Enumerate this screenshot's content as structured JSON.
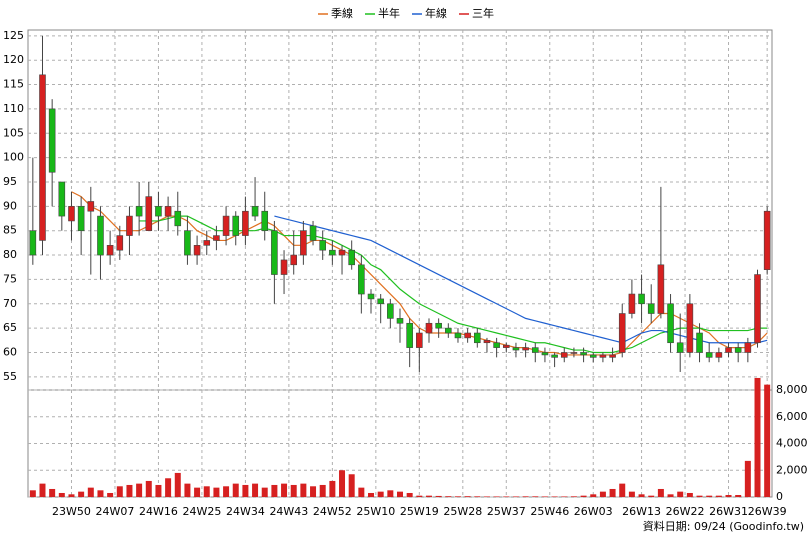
{
  "chart_data": {
    "type": "candlestick",
    "legend": [
      "季線",
      "半年",
      "年線",
      "三年"
    ],
    "footer": "資料日期: 09/24 (Goodinfo.tw)",
    "up_color": "#d62020",
    "down_color": "#18b818",
    "volume_color": "#d62020",
    "xlim": [
      0,
      77
    ],
    "xticks": [
      {
        "value": 4.5,
        "label": "23W50"
      },
      {
        "value": 9,
        "label": "24W07"
      },
      {
        "value": 13.5,
        "label": "24W16"
      },
      {
        "value": 18,
        "label": "24W25"
      },
      {
        "value": 22.5,
        "label": "24W34"
      },
      {
        "value": 27,
        "label": "24W43"
      },
      {
        "value": 31.5,
        "label": "24W52"
      },
      {
        "value": 36,
        "label": "25W10"
      },
      {
        "value": 40.5,
        "label": "25W19"
      },
      {
        "value": 45,
        "label": "25W28"
      },
      {
        "value": 49.5,
        "label": "25W37"
      },
      {
        "value": 54,
        "label": "25W46"
      },
      {
        "value": 58.5,
        "label": "26W03"
      },
      {
        "value": 63.5,
        "label": "26W13"
      },
      {
        "value": 68,
        "label": "26W22"
      },
      {
        "value": 72.5,
        "label": "26W31"
      },
      {
        "value": 76.5,
        "label": "26W39"
      }
    ],
    "ylim": [
      52.3,
      126.2
    ],
    "yticks": [
      55,
      60,
      65,
      70,
      75,
      80,
      85,
      90,
      95,
      100,
      105,
      110,
      115,
      120,
      125
    ],
    "y2lim": [
      0,
      8000
    ],
    "y2ticks": [
      0,
      {
        "value": 2000,
        "label": "2,000"
      },
      {
        "value": 4000,
        "label": "4,000"
      },
      {
        "value": 6000,
        "label": "6,000"
      },
      {
        "value": 8000,
        "label": "8,000"
      }
    ],
    "grid": true,
    "open": [
      85,
      83,
      110,
      95,
      87,
      90,
      89,
      88,
      80,
      81,
      84,
      90,
      85,
      90,
      88,
      89,
      85,
      80,
      82,
      83,
      84,
      88,
      84,
      90,
      89,
      85,
      76,
      78,
      80,
      86,
      83,
      81,
      80,
      81,
      78,
      72,
      71,
      70,
      67,
      66,
      61,
      64,
      66,
      65,
      64,
      63,
      64,
      62,
      62,
      61,
      61,
      60.5,
      61,
      60,
      59.5,
      59,
      60,
      60,
      59.5,
      59,
      59,
      60,
      68,
      72,
      70,
      68,
      70,
      62,
      60,
      64,
      60,
      59,
      60,
      61,
      60,
      62,
      77
    ],
    "high": [
      100,
      125,
      112,
      95,
      93,
      92,
      94,
      90,
      85,
      86,
      90,
      95,
      95,
      93,
      92,
      93,
      88,
      84,
      85,
      86,
      90,
      89,
      92,
      96,
      93,
      87,
      81,
      85,
      87,
      87,
      85,
      83,
      82,
      83,
      80,
      73,
      72,
      71,
      69,
      67,
      65,
      67,
      67,
      66,
      65,
      65,
      65,
      63,
      63,
      62,
      62,
      62,
      62,
      61,
      60,
      61,
      61,
      61,
      60,
      60,
      61,
      70,
      75,
      76,
      74,
      94,
      72,
      68,
      72,
      66,
      62,
      61,
      62,
      62,
      63,
      77,
      90
    ],
    "low": [
      78,
      80,
      90,
      85,
      83,
      80,
      76,
      75,
      78,
      79,
      80,
      84,
      85,
      85,
      85,
      84,
      78,
      78,
      80,
      81,
      82,
      82,
      82,
      87,
      83,
      70,
      72,
      76,
      78,
      82,
      79,
      78,
      76,
      77,
      68,
      68,
      66,
      65,
      62,
      57,
      56,
      62,
      63,
      63,
      62,
      62,
      61,
      60,
      59,
      60,
      59,
      59,
      58,
      58,
      57,
      58,
      59,
      58,
      58,
      58,
      58,
      59,
      67,
      66,
      66,
      67,
      60,
      56,
      59,
      58,
      58,
      58,
      59,
      58,
      58,
      61,
      76
    ],
    "close": [
      80,
      117,
      97,
      88,
      90,
      85,
      91,
      80,
      82,
      84,
      88,
      88,
      92,
      88,
      90,
      86,
      80,
      82,
      83,
      84,
      88,
      84,
      89,
      88,
      85,
      76,
      79,
      80,
      85,
      83,
      81,
      80,
      81,
      78,
      72,
      71,
      70,
      67,
      66,
      61,
      64,
      66,
      65,
      64,
      63,
      64,
      62,
      62.5,
      61,
      61.5,
      60.5,
      61,
      60,
      59.5,
      59,
      60,
      60,
      59.5,
      59,
      59.5,
      59.5,
      68,
      72,
      70,
      68,
      78,
      62,
      60,
      70,
      60,
      59,
      60,
      61,
      60,
      62,
      76,
      89
    ],
    "volume": [
      500,
      1000,
      600,
      300,
      200,
      400,
      700,
      500,
      300,
      800,
      900,
      1000,
      1200,
      900,
      1400,
      1800,
      1000,
      700,
      800,
      700,
      800,
      1000,
      900,
      1000,
      700,
      900,
      1000,
      900,
      1000,
      800,
      900,
      1200,
      2000,
      1700,
      700,
      300,
      400,
      500,
      400,
      300,
      100,
      100,
      80,
      60,
      50,
      60,
      50,
      40,
      40,
      40,
      40,
      50,
      50,
      40,
      40,
      40,
      50,
      100,
      200,
      400,
      600,
      1000,
      400,
      200,
      100,
      600,
      200,
      400,
      300,
      100,
      100,
      100,
      150,
      150,
      2700,
      8900,
      8400
    ],
    "series": [
      {
        "name": "季線",
        "color": "#e07020",
        "values": [
          null,
          null,
          null,
          null,
          93,
          92,
          90,
          89,
          87,
          85,
          85,
          85,
          86,
          87,
          88,
          88,
          87,
          85,
          84,
          83,
          83,
          84,
          85,
          86,
          87,
          86,
          84,
          82,
          82,
          83,
          83,
          82,
          81,
          80,
          78,
          76,
          74,
          72,
          70,
          67,
          65,
          64,
          64,
          64,
          64,
          63.5,
          63,
          62.5,
          62,
          61.5,
          61,
          61,
          60.5,
          60,
          60,
          59.5,
          59.5,
          59.5,
          59.5,
          59.5,
          59.5,
          60,
          62,
          64,
          66,
          68,
          68,
          67,
          66,
          65,
          64,
          62,
          61,
          61,
          61,
          62,
          64
        ]
      },
      {
        "name": "半年",
        "color": "#20c020",
        "values": [
          null,
          null,
          null,
          null,
          null,
          null,
          null,
          null,
          null,
          null,
          null,
          87,
          87,
          87,
          87.5,
          88,
          88,
          87,
          86,
          85,
          85,
          85,
          85,
          85,
          85.5,
          85,
          84,
          84,
          84,
          84,
          83.5,
          83,
          82,
          81,
          80,
          78,
          77,
          75,
          73,
          71.5,
          70,
          69,
          68,
          67,
          66,
          65.5,
          65,
          64.5,
          64,
          63.5,
          63,
          62.5,
          62,
          62,
          61.5,
          61,
          60.5,
          60.5,
          60,
          60,
          60,
          60.5,
          61,
          62,
          63,
          64,
          64.5,
          65,
          65,
          65,
          64.5,
          64.5,
          64.5,
          64.5,
          64.5,
          65,
          65
        ]
      },
      {
        "name": "年線",
        "color": "#2060d0",
        "values": [
          null,
          null,
          null,
          null,
          null,
          null,
          null,
          null,
          null,
          null,
          null,
          null,
          null,
          null,
          null,
          null,
          null,
          null,
          null,
          null,
          null,
          null,
          null,
          null,
          null,
          88,
          87.5,
          87,
          86.5,
          86,
          85.5,
          85,
          84.5,
          84,
          83.5,
          83,
          82,
          81,
          80,
          79,
          78,
          77,
          76,
          75,
          74,
          73,
          72,
          71,
          70,
          69,
          68,
          67,
          66.5,
          66,
          65.5,
          65,
          64.5,
          64,
          63.5,
          63,
          62.5,
          62,
          63,
          64,
          64.5,
          64.5,
          64,
          63.5,
          63,
          62.5,
          62,
          62,
          62,
          62,
          62,
          62,
          62.5
        ]
      },
      {
        "name": "三年",
        "color": "#d62020",
        "values": [
          null,
          null,
          null,
          null,
          null,
          null,
          null,
          null,
          null,
          null,
          null,
          null,
          null,
          null,
          null,
          null,
          null,
          null,
          null,
          null,
          null,
          null,
          null,
          null,
          null,
          null,
          null,
          null,
          null,
          null,
          null,
          null,
          null,
          null,
          null,
          null,
          null,
          null,
          null,
          null,
          null,
          null,
          null,
          null,
          null,
          null,
          null,
          null,
          null,
          null,
          null,
          null,
          null,
          null,
          null,
          null,
          null,
          null,
          null,
          null,
          null,
          null,
          null,
          null,
          null,
          null,
          null,
          null,
          null,
          null,
          null,
          null,
          null,
          null,
          null,
          null,
          null
        ]
      }
    ]
  }
}
